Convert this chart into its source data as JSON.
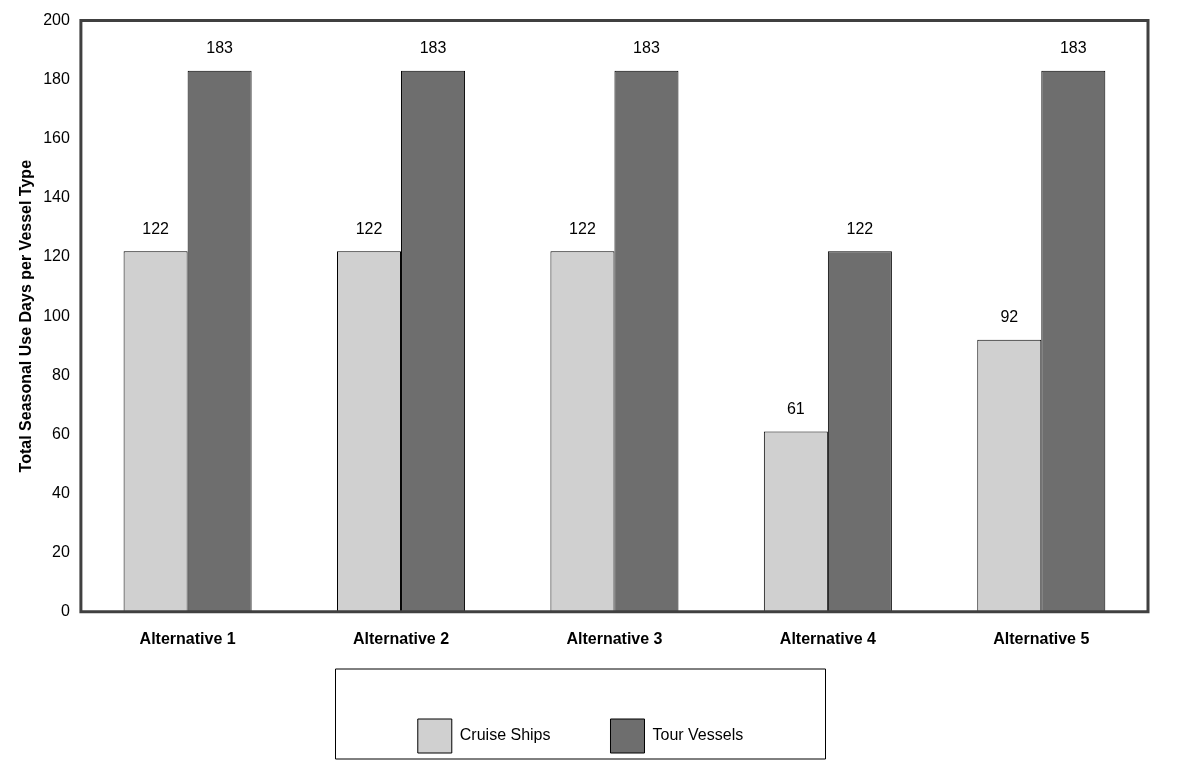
{
  "chart_data": {
    "type": "bar",
    "ylabel": "Total Seasonal Use Days per Vessel Type",
    "categories": [
      "Alternative 1",
      "Alternative 2",
      "Alternative 3",
      "Alternative 4",
      "Alternative 5"
    ],
    "series": [
      {
        "name": "Cruise Ships",
        "color": "#d0d0d0",
        "values": [
          122,
          122,
          122,
          61,
          92
        ]
      },
      {
        "name": "Tour Vessels",
        "color": "#6e6e6e",
        "values": [
          183,
          183,
          183,
          122,
          183
        ]
      }
    ],
    "ylim": [
      0,
      200
    ],
    "yticks": [
      0,
      20,
      40,
      60,
      80,
      100,
      120,
      140,
      160,
      180,
      200
    ],
    "grid": false,
    "legend": "bottom",
    "data_labels": true
  }
}
